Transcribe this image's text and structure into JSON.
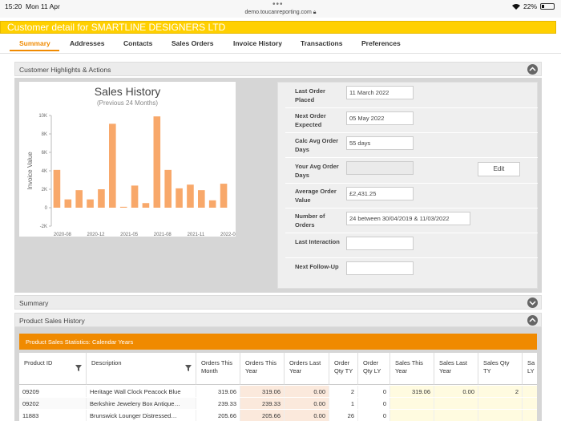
{
  "status_bar": {
    "time": "15:20",
    "date": "Mon 11 Apr",
    "url": "demo.toucanreporting.com",
    "battery": "22%"
  },
  "title": "Customer detail for SMARTLINE DESIGNERS LTD",
  "tabs": [
    "Summary",
    "Addresses",
    "Contacts",
    "Sales Orders",
    "Invoice History",
    "Transactions",
    "Preferences"
  ],
  "highlights": {
    "header": "Customer Highlights & Actions",
    "chart_title": "Sales History",
    "chart_subtitle": "(Previous 24 Months)"
  },
  "chart_data": {
    "type": "bar",
    "title": "Sales History",
    "subtitle": "(Previous 24 Months)",
    "ylabel": "Invoice Value",
    "xlabel": "",
    "ylim": [
      -2000,
      10000
    ],
    "yticks": [
      "-2K",
      "0",
      "2K",
      "4K",
      "6K",
      "8K",
      "10K"
    ],
    "ytick_values": [
      -2000,
      0,
      2000,
      4000,
      6000,
      8000,
      10000
    ],
    "xticks": [
      "2020-08",
      "2020-12",
      "2021-05",
      "2021-08",
      "2021-11",
      "2022-03"
    ],
    "xtick_positions": [
      0,
      3,
      6,
      9,
      12,
      15
    ],
    "values": [
      4100,
      900,
      1900,
      900,
      2000,
      9100,
      100,
      2400,
      500,
      9900,
      4100,
      2100,
      2500,
      1900,
      800,
      2600
    ],
    "color": "#f8a86a"
  },
  "details": [
    {
      "label": "Last Order Placed",
      "value": "11 March 2022"
    },
    {
      "label": "Next Order Expected",
      "value": "05 May 2022"
    },
    {
      "label": "Calc Avg Order Days",
      "value": "55 days"
    },
    {
      "label": "Your Avg Order Days",
      "value": ""
    },
    {
      "label": "Average Order Value",
      "value": "£2,431.25"
    },
    {
      "label": "Number of Orders",
      "value": "24 between 30/04/2019 & 11/03/2022"
    },
    {
      "label": "Last Interaction",
      "value": ""
    },
    {
      "label": "Next Follow-Up",
      "value": ""
    }
  ],
  "edit_label": "Edit",
  "summary_header": "Summary",
  "psh_header": "Product Sales History",
  "stat_bar": "Product Sales Statistics: Calendar Years",
  "table": {
    "columns": [
      "Product ID",
      "Description",
      "Orders This Month",
      "Orders This Year",
      "Orders Last Year",
      "Order Qty TY",
      "Order Qty LY",
      "Sales This Year",
      "Sales Last Year",
      "Sales Qty TY",
      "Sa LY"
    ],
    "rows": [
      [
        "09209",
        "Heritage Wall Clock Peacock Blue",
        "319.06",
        "319.06",
        "0.00",
        "2",
        "0",
        "319.06",
        "0.00",
        "2",
        ""
      ],
      [
        "09202",
        "Berkshire Jewelery Box Antique…",
        "239.33",
        "239.33",
        "0.00",
        "1",
        "0",
        "",
        "",
        "",
        ""
      ],
      [
        "11883",
        "Brunswick Lounger Distressed…",
        "205.66",
        "205.66",
        "0.00",
        "26",
        "0",
        "",
        "",
        "",
        ""
      ]
    ]
  },
  "colors": {
    "accent": "#f08a00",
    "title_bar": "#ffd000",
    "bar": "#f8a86a"
  }
}
